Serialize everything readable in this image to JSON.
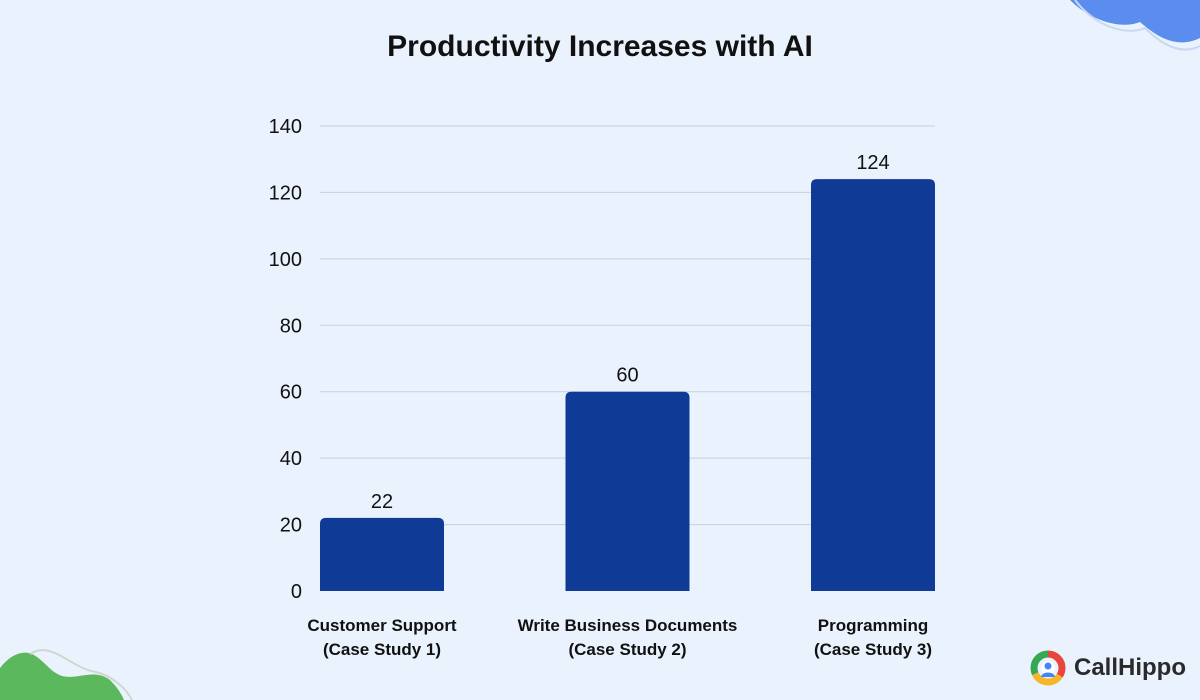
{
  "chart_data": {
    "type": "bar",
    "title": "Productivity Increases with AI",
    "categories": [
      [
        "Customer Support",
        "(Case Study 1)"
      ],
      [
        "Write Business Documents",
        "(Case Study 2)"
      ],
      [
        "Programming",
        "(Case Study 3)"
      ]
    ],
    "values": [
      22,
      60,
      124
    ],
    "ylim": [
      0,
      140
    ],
    "yticks": [
      0,
      20,
      40,
      60,
      80,
      100,
      120,
      140
    ],
    "xlabel": "",
    "ylabel": "",
    "grid": true,
    "colors": {
      "bar": "#0f3a96",
      "grid": "#c7cfd9",
      "text": "#111111"
    }
  },
  "brand": {
    "name": "CallHippo",
    "icon": "callhippo-logo-icon"
  },
  "decor": {
    "top_right_blob": "#5b8def",
    "bottom_left_blob": "#5cb85c"
  }
}
